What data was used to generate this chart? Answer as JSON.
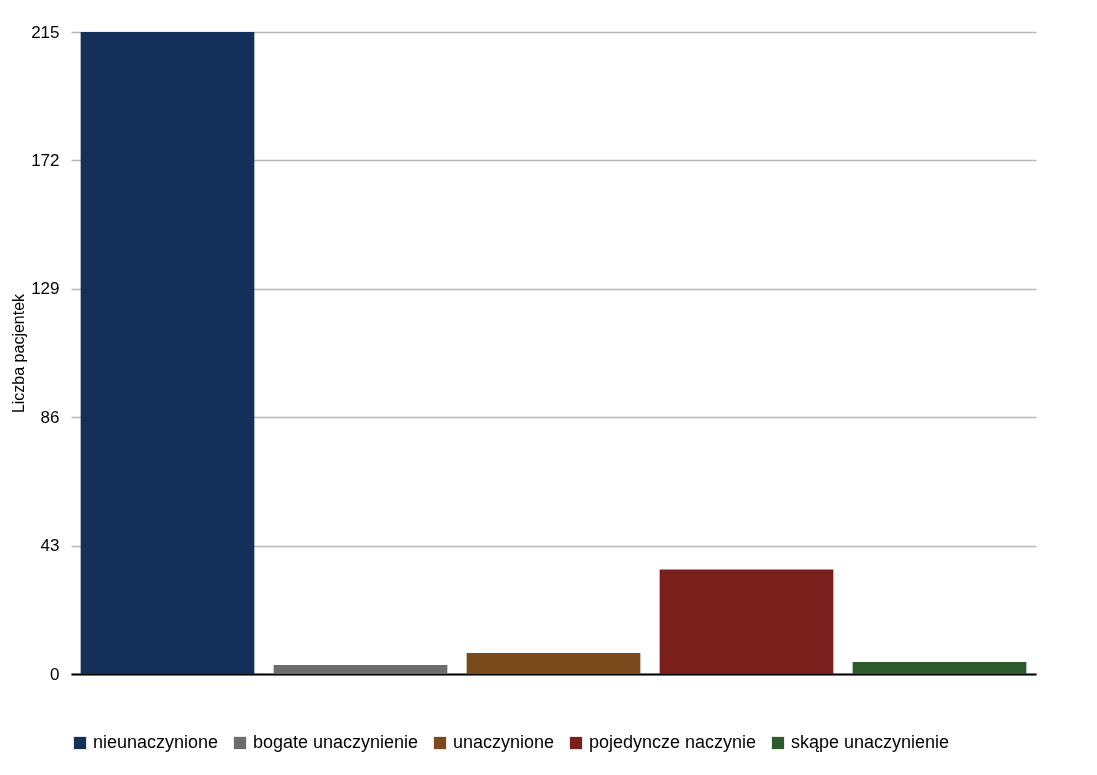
{
  "chart_data": {
    "type": "bar",
    "ylabel": "Liczba pacjentek",
    "categories": [
      null
    ],
    "series": [
      {
        "name": "nieunaczynione",
        "color": "#14305a",
        "values": [
          215
        ]
      },
      {
        "name": "bogate unaczynienie",
        "color": "#6d6d6d",
        "values": [
          3
        ]
      },
      {
        "name": "unaczynione",
        "color": "#7a4a1d",
        "values": [
          7
        ]
      },
      {
        "name": "pojedyncze naczynie",
        "color": "#7a1f1c",
        "values": [
          35
        ]
      },
      {
        "name": "skąpe unaczynienie",
        "color": "#2d5a2d",
        "values": [
          4
        ]
      }
    ],
    "ylim": [
      0,
      215
    ],
    "yticks": [
      0,
      43,
      86,
      129,
      172,
      215
    ],
    "grid": "y",
    "legend": "bottom",
    "tick_labels": "y"
  }
}
